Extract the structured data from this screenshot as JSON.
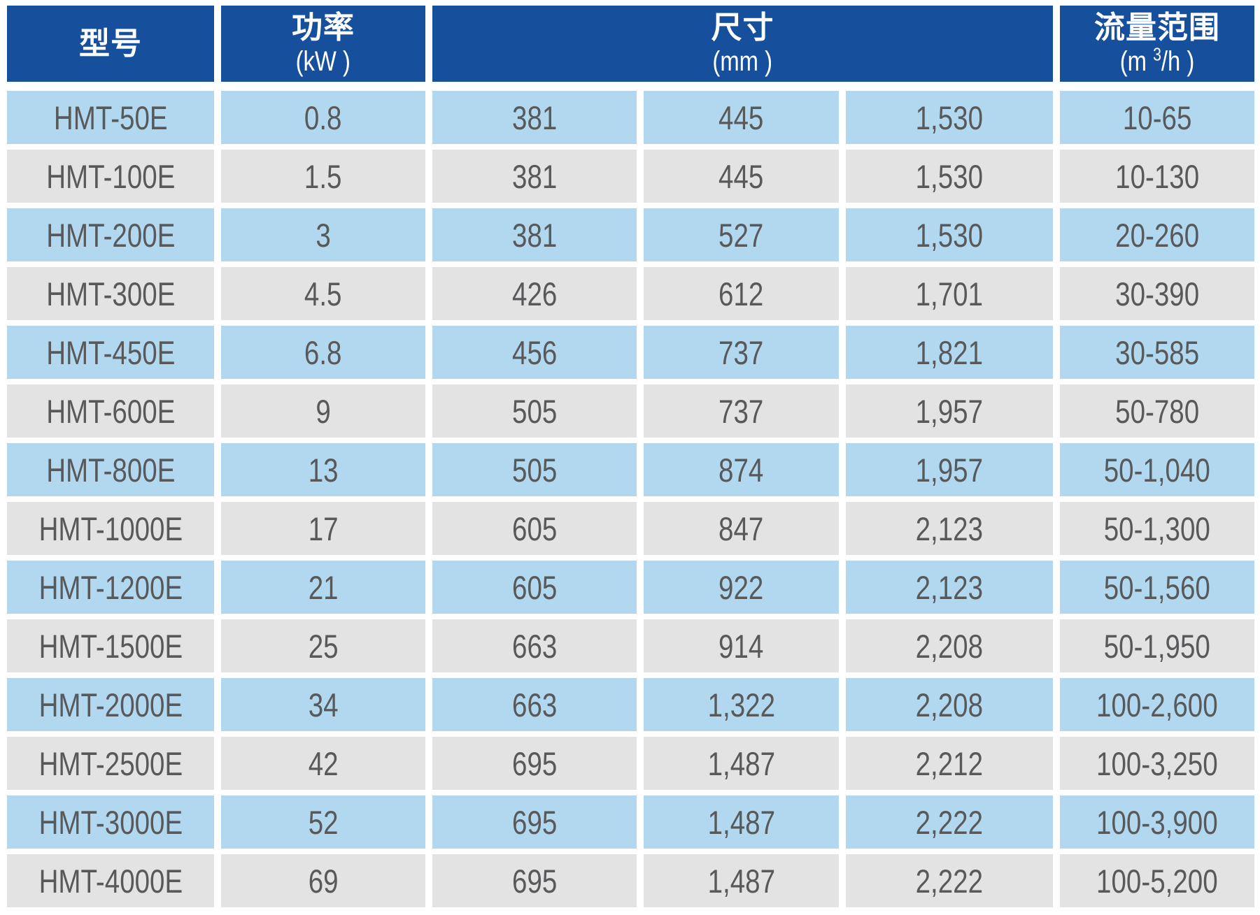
{
  "table": {
    "header": {
      "model": {
        "title": "型号"
      },
      "power": {
        "title": "功率",
        "unit": "(kW )"
      },
      "dimensions": {
        "title": "尺寸",
        "unit": "(mm )"
      },
      "flow": {
        "title": "流量范围",
        "unit_prefix": "(m ",
        "unit_sup": "3",
        "unit_suffix": "/h )"
      }
    },
    "rows": [
      {
        "model": "HMT-50E",
        "power": "0.8",
        "dim_w": "381",
        "dim_d": "445",
        "dim_h": "1,530",
        "flow": "10-65"
      },
      {
        "model": "HMT-100E",
        "power": "1.5",
        "dim_w": "381",
        "dim_d": "445",
        "dim_h": "1,530",
        "flow": "10-130"
      },
      {
        "model": "HMT-200E",
        "power": "3",
        "dim_w": "381",
        "dim_d": "527",
        "dim_h": "1,530",
        "flow": "20-260"
      },
      {
        "model": "HMT-300E",
        "power": "4.5",
        "dim_w": "426",
        "dim_d": "612",
        "dim_h": "1,701",
        "flow": "30-390"
      },
      {
        "model": "HMT-450E",
        "power": "6.8",
        "dim_w": "456",
        "dim_d": "737",
        "dim_h": "1,821",
        "flow": "30-585"
      },
      {
        "model": "HMT-600E",
        "power": "9",
        "dim_w": "505",
        "dim_d": "737",
        "dim_h": "1,957",
        "flow": "50-780"
      },
      {
        "model": "HMT-800E",
        "power": "13",
        "dim_w": "505",
        "dim_d": "874",
        "dim_h": "1,957",
        "flow": "50-1,040"
      },
      {
        "model": "HMT-1000E",
        "power": "17",
        "dim_w": "605",
        "dim_d": "847",
        "dim_h": "2,123",
        "flow": "50-1,300"
      },
      {
        "model": "HMT-1200E",
        "power": "21",
        "dim_w": "605",
        "dim_d": "922",
        "dim_h": "2,123",
        "flow": "50-1,560"
      },
      {
        "model": "HMT-1500E",
        "power": "25",
        "dim_w": "663",
        "dim_d": "914",
        "dim_h": "2,208",
        "flow": "50-1,950"
      },
      {
        "model": "HMT-2000E",
        "power": "34",
        "dim_w": "663",
        "dim_d": "1,322",
        "dim_h": "2,208",
        "flow": "100-2,600"
      },
      {
        "model": "HMT-2500E",
        "power": "42",
        "dim_w": "695",
        "dim_d": "1,487",
        "dim_h": "2,212",
        "flow": "100-3,250"
      },
      {
        "model": "HMT-3000E",
        "power": "52",
        "dim_w": "695",
        "dim_d": "1,487",
        "dim_h": "2,222",
        "flow": "100-3,900"
      },
      {
        "model": "HMT-4000E",
        "power": "69",
        "dim_w": "695",
        "dim_d": "1,487",
        "dim_h": "2,222",
        "flow": "100-5,200"
      }
    ],
    "colors": {
      "header_bg": "#164F9C",
      "header_text": "#FFFFFF",
      "row_blue": "#B2D8F0",
      "row_gray": "#E3E3E3",
      "cell_text": "#58595B",
      "background": "#FFFFFF"
    }
  }
}
